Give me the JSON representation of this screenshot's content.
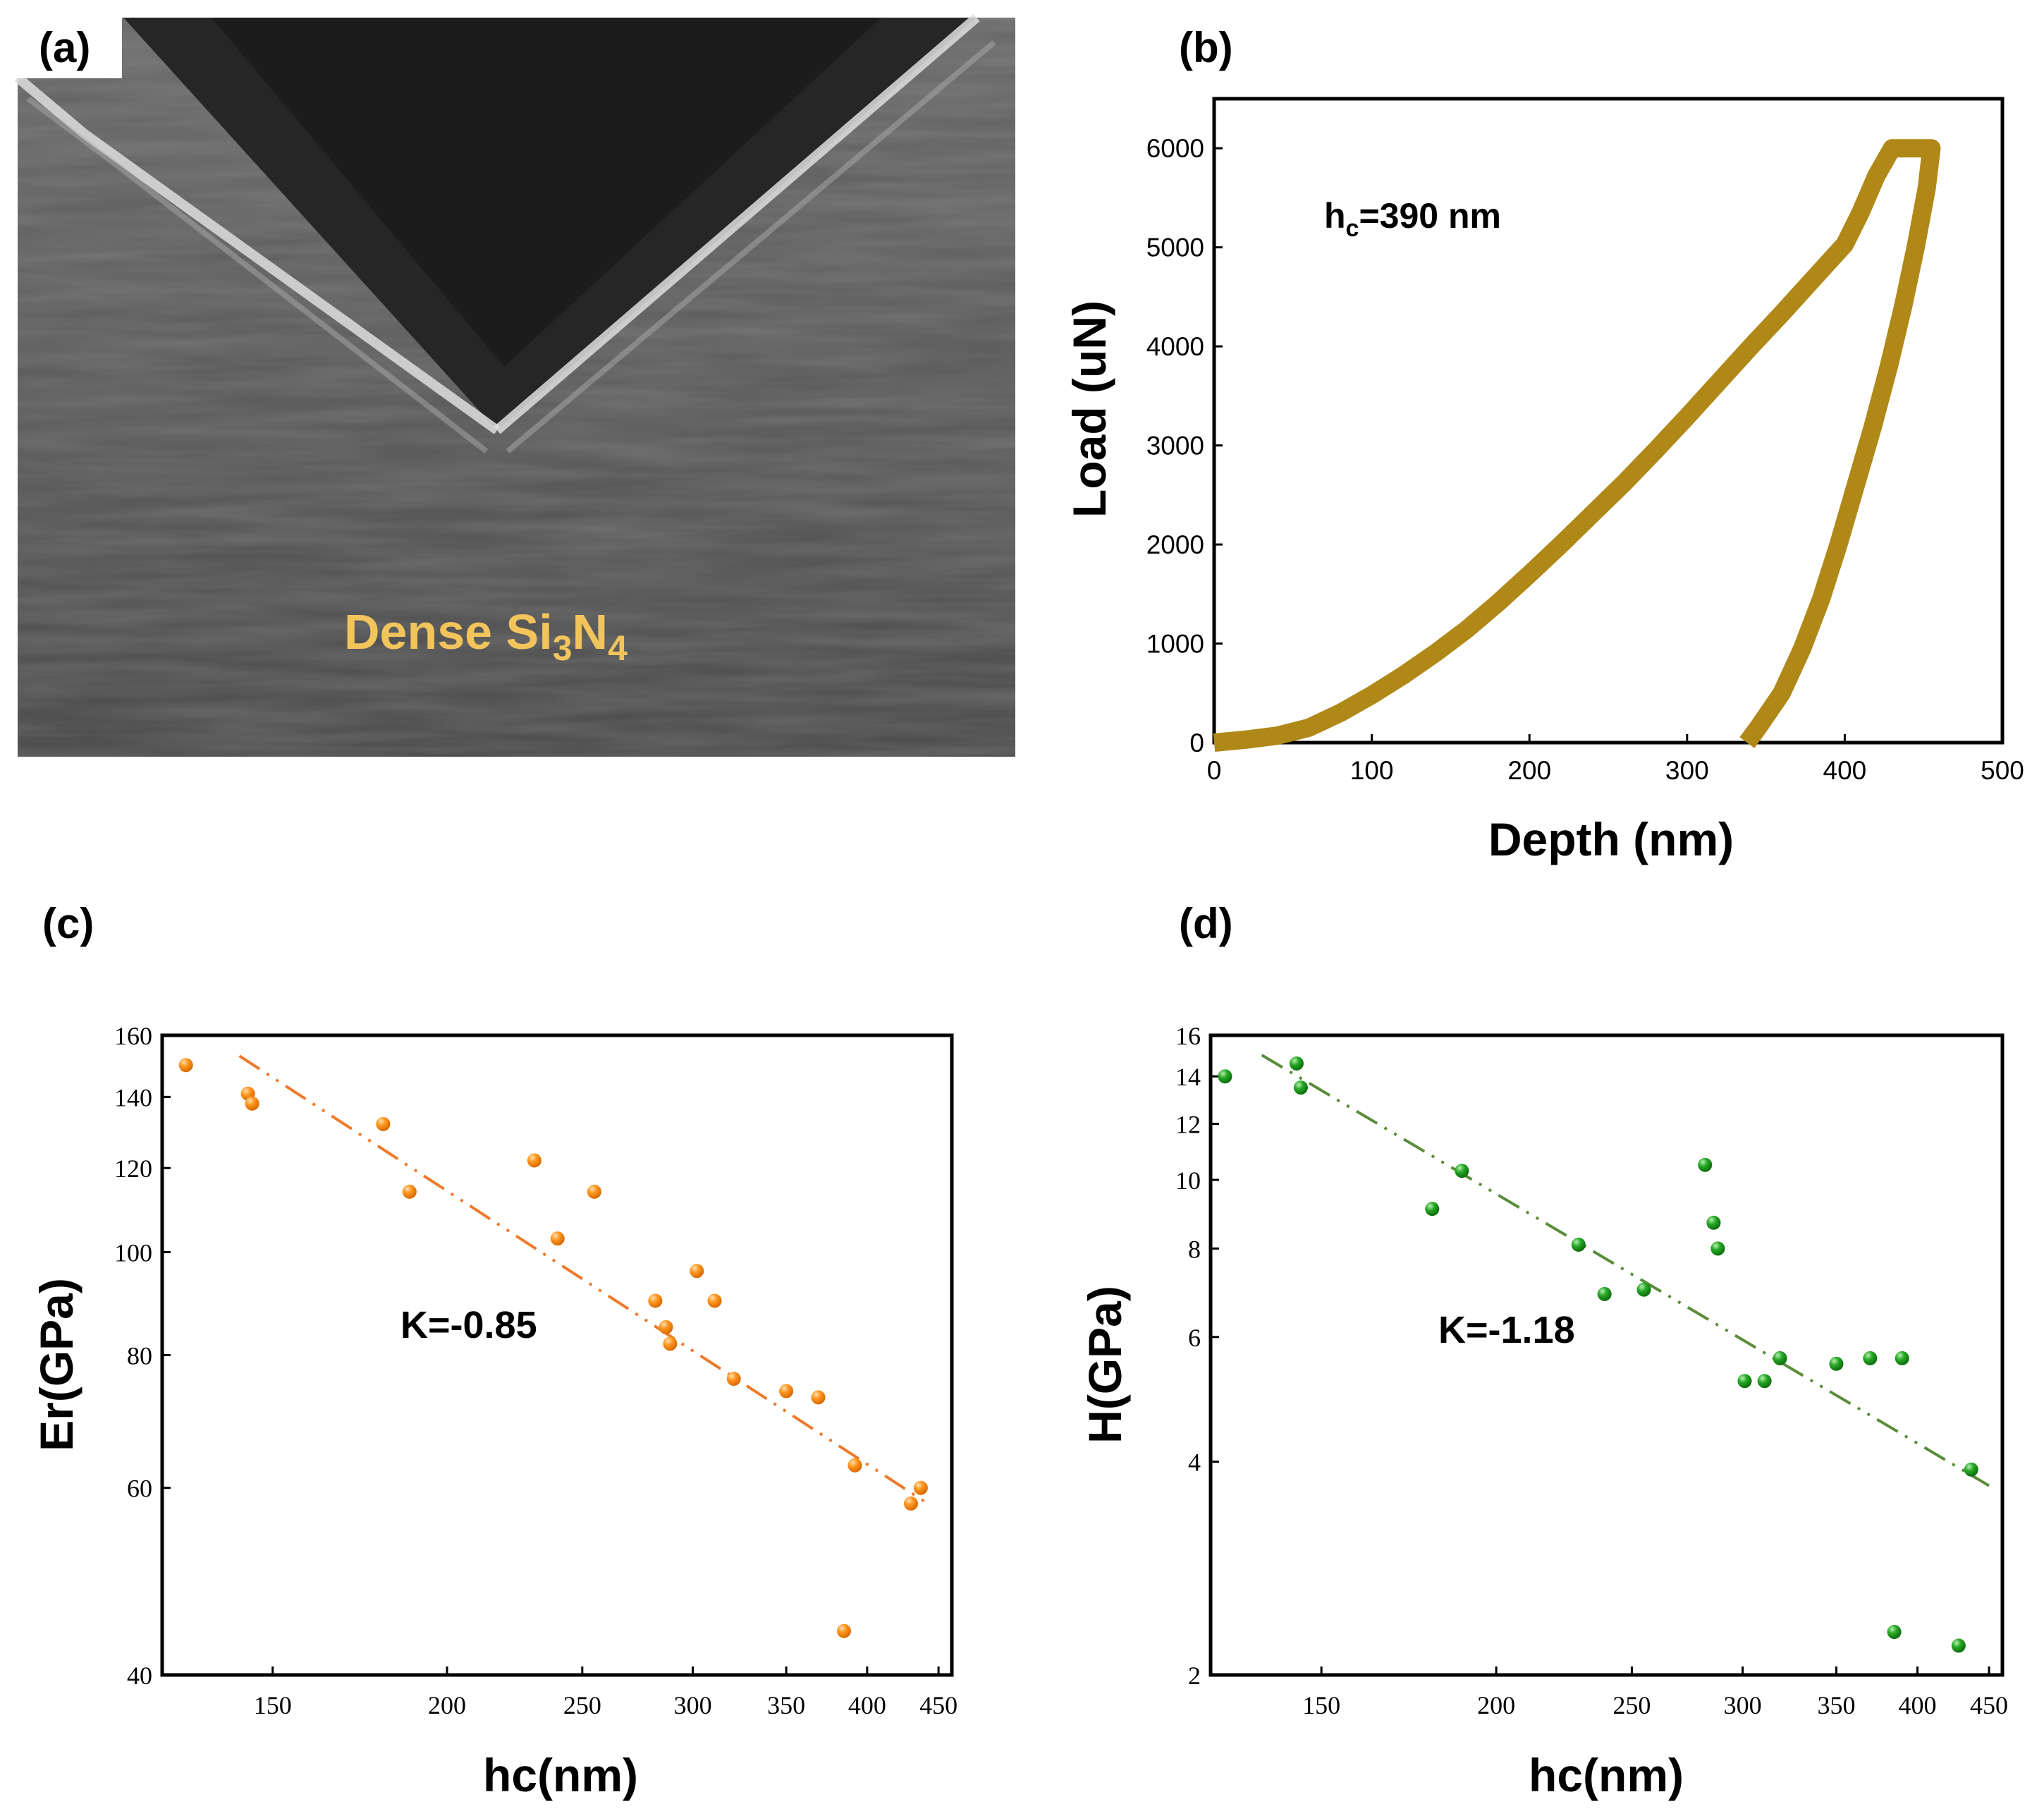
{
  "panels": {
    "a": {
      "label": "(a)",
      "annotation": "Dense Si",
      "annotation_sub1": "3",
      "annotation_mid": "N",
      "annotation_sub2": "4"
    },
    "b": {
      "label": "(b)"
    },
    "c": {
      "label": "(c)"
    },
    "d": {
      "label": "(d)"
    }
  },
  "colors": {
    "load_curve": "#b08818",
    "er_points": "#ff8c1a",
    "er_fit": "#ee7a2a",
    "h_points": "#21a021",
    "h_fit": "#5a8c3a",
    "sem_label": "#f2c45c"
  },
  "chart_data": [
    {
      "panel": "b",
      "type": "line",
      "xlabel": "Depth (nm)",
      "ylabel": "Load (uN)",
      "xlim": [
        0,
        500
      ],
      "ylim": [
        0,
        6500
      ],
      "xticks": [
        0,
        100,
        200,
        300,
        400,
        500
      ],
      "yticks": [
        0,
        1000,
        2000,
        3000,
        4000,
        5000,
        6000
      ],
      "annotation_main": "h",
      "annotation_sub": "c",
      "annotation_rest": "=390 nm",
      "series": [
        {
          "values": [
            [
              0,
              0
            ],
            [
              20,
              30
            ],
            [
              40,
              70
            ],
            [
              60,
              150
            ],
            [
              80,
              300
            ],
            [
              100,
              480
            ],
            [
              120,
              680
            ],
            [
              140,
              900
            ],
            [
              160,
              1140
            ],
            [
              180,
              1410
            ],
            [
              200,
              1700
            ],
            [
              220,
              2000
            ],
            [
              240,
              2310
            ],
            [
              260,
              2620
            ],
            [
              280,
              2950
            ],
            [
              300,
              3290
            ],
            [
              320,
              3640
            ],
            [
              340,
              3990
            ],
            [
              360,
              4330
            ],
            [
              380,
              4680
            ],
            [
              400,
              5030
            ],
            [
              410,
              5350
            ],
            [
              420,
              5720
            ],
            [
              430,
              6000
            ],
            [
              455,
              6000
            ],
            [
              452,
              5600
            ],
            [
              445,
              5000
            ],
            [
              437,
              4400
            ],
            [
              428,
              3800
            ],
            [
              418,
              3200
            ],
            [
              407,
              2600
            ],
            [
              396,
              2000
            ],
            [
              385,
              1450
            ],
            [
              373,
              950
            ],
            [
              360,
              500
            ],
            [
              345,
              150
            ],
            [
              338,
              0
            ]
          ]
        }
      ]
    },
    {
      "panel": "c",
      "type": "scatter",
      "xscale": "log",
      "yscale": "log",
      "xlabel": "hc(nm)",
      "ylabel": "Er(GPa)",
      "xlim": [
        125,
        460
      ],
      "ylim": [
        40,
        160
      ],
      "xticks": [
        150,
        200,
        250,
        300,
        350,
        400,
        450
      ],
      "yticks": [
        40,
        60,
        80,
        100,
        120,
        140,
        160
      ],
      "annotation": "K=-0.85",
      "fit": {
        "slope": -0.85,
        "from": [
          142,
          153
        ],
        "to": [
          442,
          58
        ]
      },
      "points": [
        [
          130,
          150
        ],
        [
          144,
          141
        ],
        [
          145,
          138
        ],
        [
          180,
          132
        ],
        [
          188,
          114
        ],
        [
          231,
          122
        ],
        [
          255,
          114
        ],
        [
          240,
          103
        ],
        [
          282,
          90
        ],
        [
          287,
          85
        ],
        [
          289,
          82
        ],
        [
          302,
          96
        ],
        [
          311,
          90
        ],
        [
          321,
          76
        ],
        [
          350,
          74
        ],
        [
          369,
          73
        ],
        [
          392,
          63
        ],
        [
          430,
          58
        ],
        [
          437,
          60
        ],
        [
          385,
          44
        ]
      ]
    },
    {
      "panel": "d",
      "type": "scatter",
      "xscale": "log",
      "yscale": "log",
      "xlabel": "hc(nm)",
      "ylabel": "H(GPa)",
      "xlim": [
        125,
        460
      ],
      "ylim": [
        2,
        16
      ],
      "xticks": [
        150,
        200,
        250,
        300,
        350,
        400,
        450
      ],
      "yticks": [
        2,
        4,
        6,
        8,
        10,
        12,
        14,
        16
      ],
      "annotation": "K=-1.18",
      "fit": {
        "slope": -1.18,
        "from": [
          136,
          15
        ],
        "to": [
          450,
          3.7
        ]
      },
      "points": [
        [
          128,
          14
        ],
        [
          144,
          14.6
        ],
        [
          145,
          13.5
        ],
        [
          180,
          9.1
        ],
        [
          189,
          10.3
        ],
        [
          229,
          8.1
        ],
        [
          239,
          6.9
        ],
        [
          255,
          7.0
        ],
        [
          282,
          10.5
        ],
        [
          286,
          8.7
        ],
        [
          288,
          8.0
        ],
        [
          301,
          5.2
        ],
        [
          311,
          5.2
        ],
        [
          319,
          5.6
        ],
        [
          350,
          5.5
        ],
        [
          370,
          5.6
        ],
        [
          390,
          5.6
        ],
        [
          385,
          2.3
        ],
        [
          428,
          2.2
        ],
        [
          437,
          3.9
        ]
      ]
    }
  ]
}
